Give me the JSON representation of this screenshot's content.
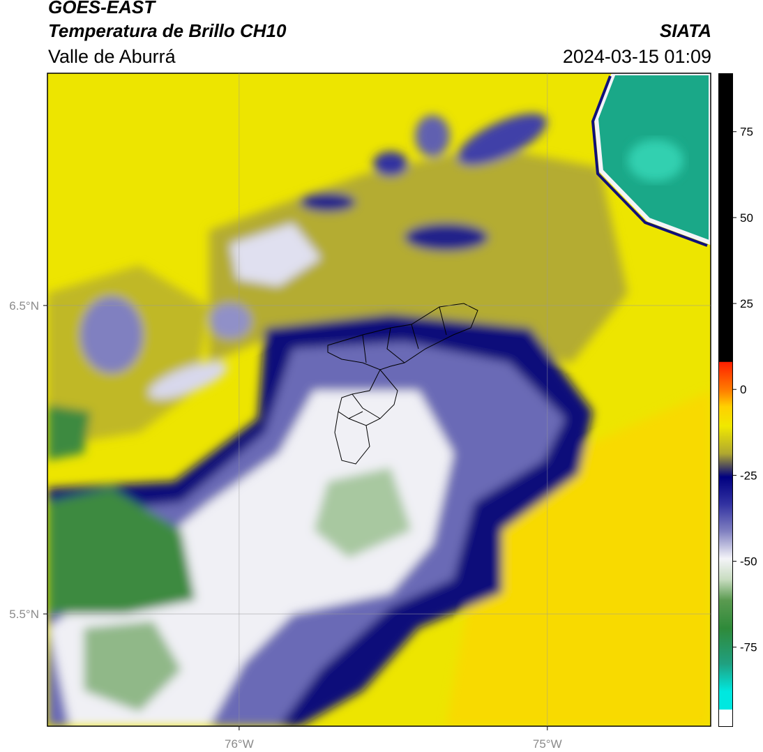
{
  "header": {
    "title": "GOES-EAST",
    "subtitle": "Temperatura de Brillo CH10",
    "region": "Valle de Aburrá",
    "source": "SIATA",
    "timestamp": "2024-03-15 01:09"
  },
  "map": {
    "xlim": [
      -76.622,
      -74.47
    ],
    "ylim": [
      5.136,
      7.253
    ],
    "xticks": [
      {
        "value": -76,
        "label": "76°W"
      },
      {
        "value": -75,
        "label": "75°W"
      }
    ],
    "yticks": [
      {
        "value": 6.5,
        "label": "6.5°N"
      },
      {
        "value": 5.5,
        "label": "5.5°N"
      }
    ],
    "grid": true
  },
  "colorbar": {
    "lim": [
      -98,
      92
    ],
    "ticks": [
      75,
      50,
      25,
      0,
      -25,
      -50,
      -75
    ]
  }
}
